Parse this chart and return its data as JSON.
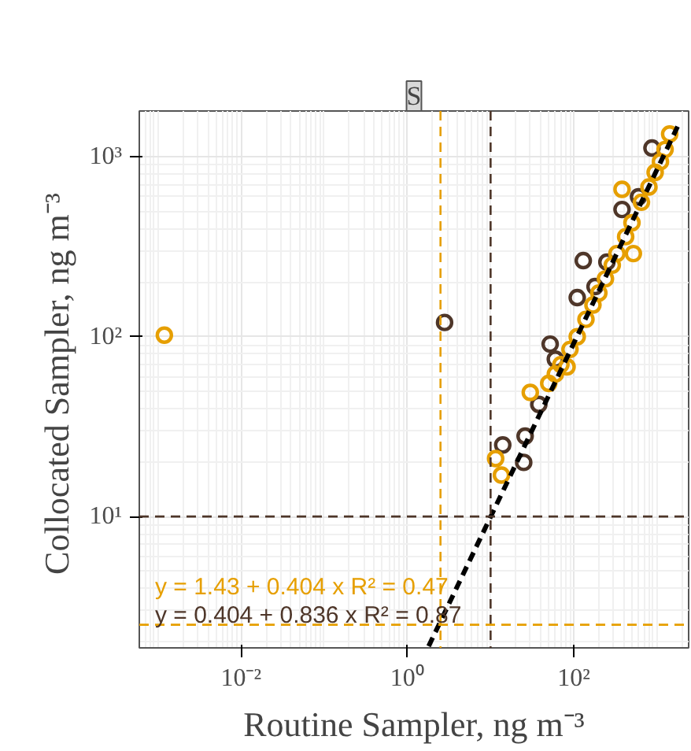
{
  "chart_data": {
    "type": "scatter",
    "title": "S",
    "xlabel": "Routine Sampler, ng m⁻³",
    "ylabel": "Collocated Sampler, ng  m⁻³",
    "log": "xy",
    "grid": true,
    "marker": "circle",
    "xlim": [
      0.0006,
      2400
    ],
    "ylim": [
      1.86,
      1800
    ],
    "xticks": [
      {
        "value": 0.01,
        "label": "10⁻²"
      },
      {
        "value": 1,
        "label": "10⁰"
      },
      {
        "value": 100,
        "label": "10²"
      }
    ],
    "yticks": [
      {
        "value": 10,
        "label": "10¹"
      },
      {
        "value": 100,
        "label": "10²"
      },
      {
        "value": 1000,
        "label": "10³"
      }
    ],
    "series": [
      {
        "color": "#4e3629",
        "x": [
          2.8,
          14,
          26,
          25,
          38,
          52,
          110,
          130,
          380,
          870,
          60,
          180,
          250,
          600
        ],
        "values": [
          120,
          25,
          28,
          20,
          42,
          91,
          165,
          265,
          510,
          1120,
          75,
          190,
          260,
          600
        ]
      },
      {
        "color": "#e69f00",
        "x": [
          0.0012,
          11.5,
          13.5,
          30,
          83,
          520,
          1420,
          380,
          50,
          60,
          70,
          90,
          110,
          140,
          170,
          200,
          240,
          290,
          330,
          420,
          500,
          650,
          800,
          950,
          1100,
          1250
        ],
        "values": [
          102,
          21,
          17,
          49,
          68,
          290,
          1340,
          660,
          55,
          62,
          70,
          85,
          100,
          125,
          150,
          175,
          210,
          250,
          290,
          360,
          430,
          560,
          680,
          820,
          940,
          1100
        ]
      },
      {
        "type": "line",
        "color": "#000000",
        "line_style": "dashed",
        "marker": "none",
        "x": [
          1.8,
          1800
        ],
        "values": [
          1.9,
          1500
        ]
      }
    ],
    "ref_lines": [
      {
        "axis": "x",
        "value": 2.5,
        "color": "#e69f00",
        "line_style": "dashed"
      },
      {
        "axis": "x",
        "value": 10,
        "color": "#4e3629",
        "line_style": "dashed"
      },
      {
        "axis": "y",
        "value": 10,
        "color": "#4e3629",
        "line_style": "dashed"
      },
      {
        "axis": "y",
        "value": 2.5,
        "color": "#e69f00",
        "line_style": "dashed"
      }
    ],
    "annotations": [
      "y = 1.43 + 0.404 x  R² = 0.47",
      "y = 0.404 + 0.836 x  R² = 0.87"
    ]
  }
}
